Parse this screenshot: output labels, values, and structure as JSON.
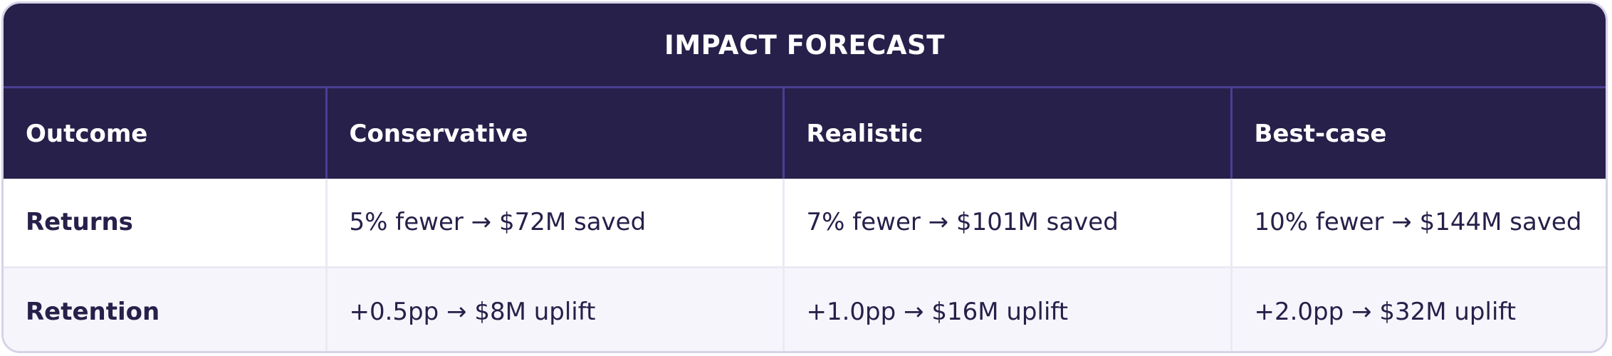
{
  "table": {
    "title": "IMPACT FORECAST",
    "headers": [
      "Outcome",
      "Conservative",
      "Realistic",
      "Best-case"
    ],
    "rows": [
      [
        "Returns",
        "5% fewer → $72M saved",
        "7% fewer → $101M saved",
        "10% fewer → $144M saved"
      ],
      [
        "Retention",
        "+0.5pp → $8M uplift",
        "+1.0pp → $16M uplift",
        "+2.0pp → $32M uplift"
      ]
    ]
  },
  "colors": {
    "header_bg": "#27204a",
    "header_divider": "#4a3f93",
    "row_alt_bg": "#f6f5fb",
    "text": "#27204a",
    "card_border": "#d6d2e8"
  }
}
